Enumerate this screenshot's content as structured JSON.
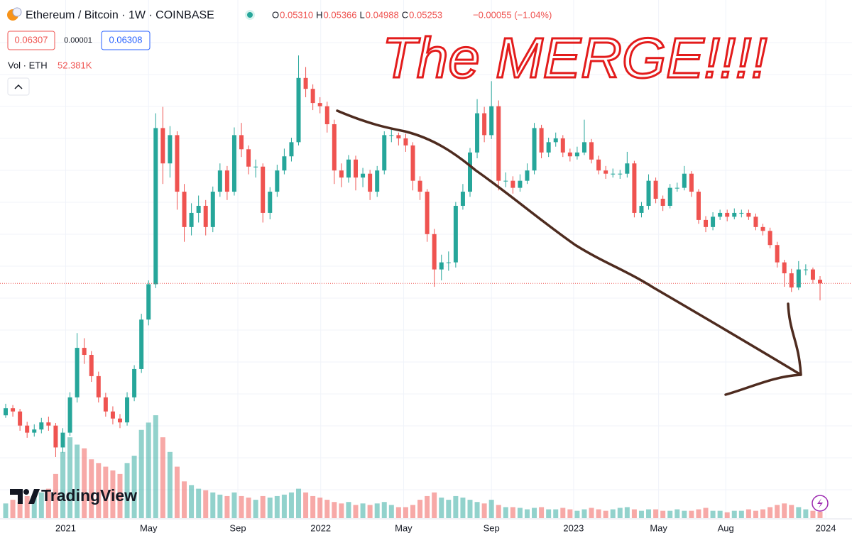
{
  "chart_data": {
    "type": "candlestick",
    "title": "Ethereum / Bitcoin · 1W · COINBASE",
    "ohlc_legend": [
      {
        "label": "O",
        "value": "0.05310"
      },
      {
        "label": "H",
        "value": "0.05366"
      },
      {
        "label": "L",
        "value": "0.04988"
      },
      {
        "label": "C",
        "value": "0.05253"
      }
    ],
    "change": "−0.00055 (−1.04%)",
    "quote_boxes": [
      "0.06307",
      "0.00001",
      "0.06308"
    ],
    "volume_label": "Vol · ETH",
    "volume_last_label": "52.381K",
    "annotation": "The MERGE!!!!",
    "watermark": "TradingView",
    "up_color": "#26a69a",
    "down_color": "#ef5350",
    "open": [
      0.032,
      0.0331,
      0.0326,
      0.0304,
      0.0293,
      0.0298,
      0.0309,
      0.0304,
      0.027,
      0.0293,
      0.0348,
      0.0425,
      0.0414,
      0.0381,
      0.0348,
      0.0326,
      0.0315,
      0.0309,
      0.0348,
      0.0392,
      0.0469,
      0.0524,
      0.0767,
      0.0712,
      0.0756,
      0.0668,
      0.0613,
      0.0635,
      0.0646,
      0.0613,
      0.0668,
      0.0701,
      0.0668,
      0.0756,
      0.0734,
      0.0707,
      0.0707,
      0.0635,
      0.0668,
      0.0701,
      0.0723,
      0.0745,
      0.0845,
      0.0828,
      0.0806,
      0.0801,
      0.0773,
      0.0701,
      0.069,
      0.0718,
      0.069,
      0.0696,
      0.0668,
      0.0701,
      0.0756,
      0.0756,
      0.0751,
      0.074,
      0.0685,
      0.0668,
      0.0602,
      0.0547,
      0.0558,
      0.0558,
      0.0646,
      0.0668,
      0.0729,
      0.079,
      0.0756,
      0.0801,
      0.0685,
      0.0685,
      0.0674,
      0.0685,
      0.0701,
      0.0767,
      0.0729,
      0.0745,
      0.0751,
      0.0729,
      0.0723,
      0.0729,
      0.0745,
      0.0718,
      0.0701,
      0.0696,
      0.0696,
      0.0696,
      0.0712,
      0.0635,
      0.0646,
      0.0685,
      0.0657,
      0.0646,
      0.0674,
      0.0674,
      0.0696,
      0.0668,
      0.0624,
      0.0613,
      0.0629,
      0.0635,
      0.0629,
      0.0635,
      0.0635,
      0.0629,
      0.0613,
      0.0607,
      0.0585,
      0.0558,
      0.0541,
      0.0519,
      0.0547,
      0.0547,
      0.0531
    ],
    "high": [
      0.0338,
      0.0336,
      0.033,
      0.031,
      0.0306,
      0.0316,
      0.0318,
      0.0308,
      0.03,
      0.0356,
      0.0448,
      0.044,
      0.042,
      0.0388,
      0.0355,
      0.0334,
      0.0322,
      0.0356,
      0.0398,
      0.0478,
      0.053,
      0.079,
      0.08,
      0.077,
      0.0762,
      0.068,
      0.065,
      0.0662,
      0.0655,
      0.0676,
      0.0712,
      0.0708,
      0.0768,
      0.0775,
      0.074,
      0.0718,
      0.0712,
      0.0675,
      0.071,
      0.0735,
      0.0752,
      0.088,
      0.0862,
      0.0835,
      0.0815,
      0.0808,
      0.078,
      0.0712,
      0.0725,
      0.0724,
      0.0705,
      0.0702,
      0.0708,
      0.0762,
      0.0765,
      0.076,
      0.0758,
      0.0745,
      0.0692,
      0.0672,
      0.061,
      0.057,
      0.0575,
      0.0652,
      0.068,
      0.0736,
      0.0812,
      0.08,
      0.084,
      0.081,
      0.0698,
      0.0692,
      0.0695,
      0.0712,
      0.0775,
      0.0772,
      0.0752,
      0.076,
      0.0756,
      0.0735,
      0.0738,
      0.078,
      0.075,
      0.0724,
      0.0708,
      0.0704,
      0.0702,
      0.073,
      0.0716,
      0.0652,
      0.0695,
      0.069,
      0.0662,
      0.068,
      0.0682,
      0.0708,
      0.07,
      0.0672,
      0.063,
      0.0636,
      0.064,
      0.064,
      0.0642,
      0.064,
      0.064,
      0.0634,
      0.0618,
      0.0612,
      0.059,
      0.0562,
      0.0548,
      0.056,
      0.0555,
      0.055,
      0.05366
    ],
    "low": [
      0.0316,
      0.0318,
      0.0296,
      0.0285,
      0.0287,
      0.0292,
      0.0296,
      0.0255,
      0.0262,
      0.0288,
      0.034,
      0.04,
      0.0372,
      0.034,
      0.0318,
      0.0306,
      0.03,
      0.0304,
      0.0342,
      0.0386,
      0.046,
      0.0518,
      0.068,
      0.069,
      0.064,
      0.059,
      0.06,
      0.062,
      0.06,
      0.0605,
      0.066,
      0.0655,
      0.0662,
      0.0722,
      0.0695,
      0.069,
      0.062,
      0.0625,
      0.066,
      0.0695,
      0.0715,
      0.074,
      0.0815,
      0.0795,
      0.079,
      0.076,
      0.068,
      0.0675,
      0.0682,
      0.067,
      0.0675,
      0.0655,
      0.066,
      0.0695,
      0.0745,
      0.074,
      0.073,
      0.067,
      0.0655,
      0.059,
      0.052,
      0.053,
      0.0545,
      0.055,
      0.064,
      0.066,
      0.072,
      0.0745,
      0.075,
      0.067,
      0.0675,
      0.0665,
      0.0668,
      0.068,
      0.0695,
      0.072,
      0.0722,
      0.0738,
      0.0722,
      0.0715,
      0.0718,
      0.0725,
      0.0712,
      0.0695,
      0.0688,
      0.069,
      0.0688,
      0.069,
      0.0628,
      0.0628,
      0.064,
      0.065,
      0.0638,
      0.0642,
      0.0668,
      0.067,
      0.066,
      0.0618,
      0.0605,
      0.0608,
      0.0624,
      0.0622,
      0.0625,
      0.0628,
      0.0624,
      0.0608,
      0.06,
      0.058,
      0.055,
      0.052,
      0.0512,
      0.0515,
      0.0538,
      0.0525,
      0.04988
    ],
    "close": [
      0.0331,
      0.0326,
      0.0304,
      0.0293,
      0.0298,
      0.0309,
      0.0304,
      0.027,
      0.0293,
      0.0348,
      0.0425,
      0.0414,
      0.0381,
      0.0348,
      0.0326,
      0.0315,
      0.0309,
      0.0348,
      0.0392,
      0.0469,
      0.0524,
      0.0767,
      0.0712,
      0.0756,
      0.0668,
      0.0613,
      0.0635,
      0.0646,
      0.0613,
      0.0668,
      0.0701,
      0.0668,
      0.0756,
      0.0734,
      0.0707,
      0.0707,
      0.0635,
      0.0668,
      0.0701,
      0.0723,
      0.0745,
      0.0845,
      0.0828,
      0.0806,
      0.0801,
      0.0773,
      0.0701,
      0.069,
      0.0718,
      0.069,
      0.0696,
      0.0668,
      0.0701,
      0.0756,
      0.0756,
      0.0751,
      0.074,
      0.0685,
      0.0668,
      0.0602,
      0.0547,
      0.0558,
      0.0558,
      0.0646,
      0.0668,
      0.0729,
      0.079,
      0.0756,
      0.0801,
      0.0685,
      0.0685,
      0.0674,
      0.0685,
      0.0701,
      0.0767,
      0.0729,
      0.0745,
      0.0751,
      0.0729,
      0.0723,
      0.0729,
      0.0745,
      0.0718,
      0.0701,
      0.0696,
      0.0696,
      0.0696,
      0.0712,
      0.0635,
      0.0646,
      0.0685,
      0.0657,
      0.0646,
      0.0674,
      0.0674,
      0.0696,
      0.0668,
      0.0624,
      0.0613,
      0.0629,
      0.0635,
      0.0629,
      0.0635,
      0.0635,
      0.0629,
      0.0613,
      0.0607,
      0.0585,
      0.0558,
      0.0541,
      0.0519,
      0.0547,
      0.0547,
      0.0531,
      0.05253
    ],
    "volume": [
      120000,
      150000,
      132000,
      180000,
      168000,
      210000,
      240000,
      360000,
      540000,
      660000,
      600000,
      570000,
      480000,
      450000,
      420000,
      390000,
      360000,
      450000,
      510000,
      720000,
      780000,
      840000,
      660000,
      540000,
      420000,
      300000,
      270000,
      240000,
      228000,
      210000,
      192000,
      180000,
      210000,
      180000,
      168000,
      150000,
      180000,
      168000,
      180000,
      192000,
      210000,
      240000,
      210000,
      180000,
      168000,
      150000,
      132000,
      120000,
      132000,
      108000,
      120000,
      108000,
      120000,
      132000,
      108000,
      90000,
      90000,
      108000,
      150000,
      180000,
      210000,
      168000,
      150000,
      180000,
      168000,
      150000,
      132000,
      120000,
      150000,
      108000,
      90000,
      90000,
      84000,
      72000,
      84000,
      90000,
      72000,
      72000,
      84000,
      72000,
      60000,
      72000,
      84000,
      72000,
      60000,
      72000,
      84000,
      90000,
      72000,
      60000,
      72000,
      72000,
      60000,
      60000,
      72000,
      60000,
      60000,
      72000,
      84000,
      60000,
      60000,
      48000,
      60000,
      60000,
      72000,
      60000,
      72000,
      90000,
      108000,
      120000,
      108000,
      90000,
      72000,
      60000,
      52381
    ],
    "ylim": [
      0.016,
      0.09
    ],
    "xticks": [
      {
        "value": 8.4,
        "label": "2021"
      },
      {
        "value": 20,
        "label": "May"
      },
      {
        "value": 32.5,
        "label": "Sep"
      },
      {
        "value": 44.1,
        "label": "2022"
      },
      {
        "value": 55.7,
        "label": "May"
      },
      {
        "value": 68,
        "label": "Sep"
      },
      {
        "value": 79.5,
        "label": "2023"
      },
      {
        "value": 91.4,
        "label": "May"
      },
      {
        "value": 100.8,
        "label": "Aug"
      },
      {
        "value": 114.8,
        "label": "2024"
      }
    ]
  }
}
